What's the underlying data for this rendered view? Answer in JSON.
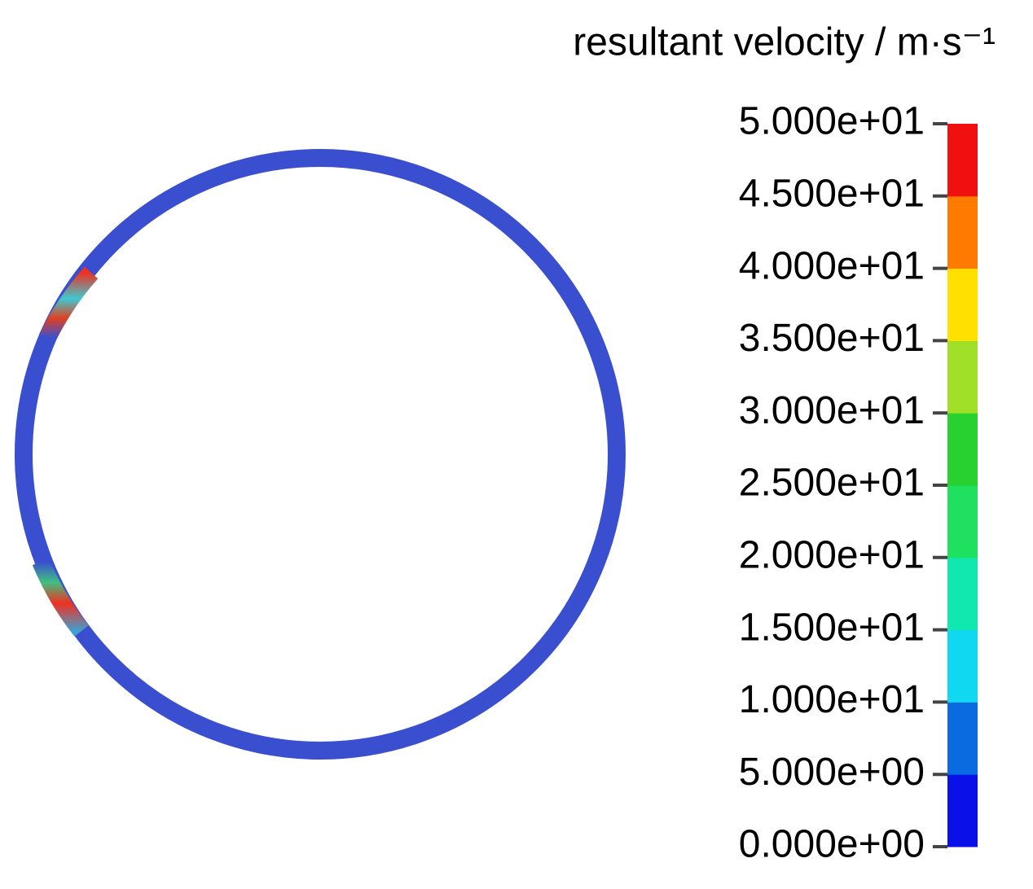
{
  "chart_data": {
    "type": "contour",
    "title": "resultant velocity / m·s⁻¹",
    "ylim": [
      0,
      50
    ],
    "yticks": [
      {
        "value": 0,
        "label": "0.000e+00"
      },
      {
        "value": 5,
        "label": "5.000e+00"
      },
      {
        "value": 10,
        "label": "1.000e+01"
      },
      {
        "value": 15,
        "label": "1.500e+01"
      },
      {
        "value": 20,
        "label": "2.000e+01"
      },
      {
        "value": 25,
        "label": "2.500e+01"
      },
      {
        "value": 30,
        "label": "3.000e+01"
      },
      {
        "value": 35,
        "label": "3.500e+01"
      },
      {
        "value": 40,
        "label": "4.000e+01"
      },
      {
        "value": 45,
        "label": "4.500e+01"
      },
      {
        "value": 50,
        "label": "5.000e+01"
      }
    ],
    "colors": [
      "#0a10e8",
      "#0a6ae0",
      "#10d8f0",
      "#10e8b0",
      "#20e060",
      "#28d030",
      "#a0e028",
      "#ffe000",
      "#ff7a00",
      "#f01010"
    ]
  }
}
